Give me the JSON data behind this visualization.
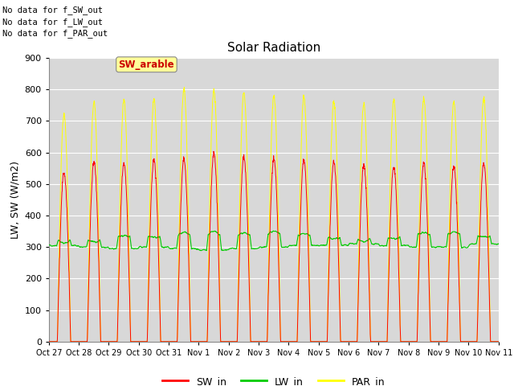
{
  "title": "Solar Radiation",
  "ylabel": "LW, SW (W/m2)",
  "xlabels": [
    "Oct 27",
    "Oct 28",
    "Oct 29",
    "Oct 30",
    "Oct 31",
    "Nov 1",
    "Nov 2",
    "Nov 3",
    "Nov 4",
    "Nov 5",
    "Nov 6",
    "Nov 7",
    "Nov 8",
    "Nov 9",
    "Nov 10",
    "Nov 11"
  ],
  "ylim": [
    0,
    900
  ],
  "yticks": [
    0,
    100,
    200,
    300,
    400,
    500,
    600,
    700,
    800,
    900
  ],
  "no_data_texts": [
    "No data for f_SW_out",
    "No data for f_LW_out",
    "No data for f_PAR_out"
  ],
  "annotation_text": "SW_arable",
  "annotation_bg": "#ffff99",
  "annotation_fc": "#cc0000",
  "legend_entries": [
    "SW_in",
    "LW_in",
    "PAR_in"
  ],
  "legend_colors": [
    "#ff0000",
    "#00cc00",
    "#ffff00"
  ],
  "sw_color": "#ff0000",
  "lw_color": "#00cc00",
  "par_color": "#ffff00",
  "n_days": 15,
  "sw_peaks": [
    535,
    570,
    565,
    575,
    580,
    595,
    585,
    580,
    575,
    570,
    560,
    555,
    565,
    555,
    565
  ],
  "par_peaks": [
    720,
    760,
    765,
    770,
    800,
    795,
    790,
    780,
    775,
    760,
    755,
    765,
    770,
    760,
    770
  ],
  "lw_day_values": [
    340,
    345,
    365,
    360,
    375,
    380,
    375,
    380,
    370,
    355,
    345,
    355,
    375,
    375,
    360
  ],
  "lw_night_values": [
    305,
    300,
    295,
    300,
    295,
    290,
    295,
    300,
    305,
    305,
    310,
    305,
    300,
    300,
    310
  ]
}
